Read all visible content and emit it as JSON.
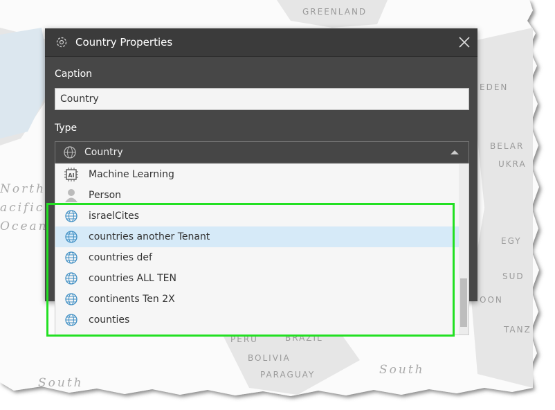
{
  "map": {
    "labels": [
      "GREENLAND",
      "EDEN",
      "BELAR",
      "UKRA",
      "EGY",
      "SUD",
      "OON",
      "TANZ",
      "North",
      "acific",
      "Ocean",
      "PERU",
      "BRAZIL",
      "BOLIVIA",
      "PARAGUAY",
      "South",
      "South"
    ]
  },
  "dialog": {
    "title": "Country Properties",
    "caption": {
      "label": "Caption",
      "value": "Country"
    },
    "type": {
      "label": "Type",
      "value": "Country",
      "items": [
        "Machine Learning",
        "Person",
        "israelCites",
        "countries another Tenant",
        "countries def",
        "countries ALL TEN",
        "continents Ten 2X",
        "counties"
      ]
    }
  }
}
